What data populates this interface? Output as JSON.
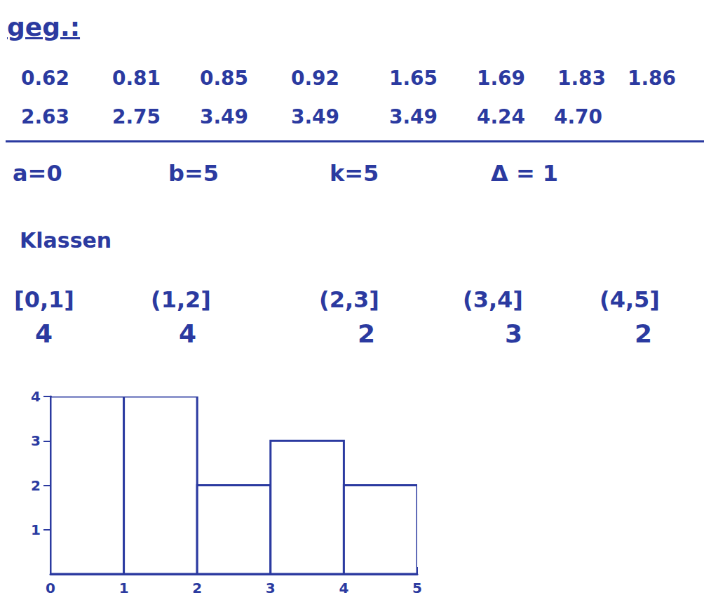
{
  "header": "geg.:",
  "given_values": [
    [
      "0.62",
      "0.81",
      "0.85",
      "0.92",
      "1.65",
      "1.69",
      "1.83",
      "1.86"
    ],
    [
      "2.63",
      "2.75",
      "3.49",
      "3.49",
      "3.49",
      "4.24",
      "4.70"
    ]
  ],
  "parameters": [
    "a=0",
    "b=5",
    "k=5",
    "Δ = 1"
  ],
  "classes_title": "Klassen",
  "classes": [
    {
      "label": "[0,1]",
      "count": 4
    },
    {
      "label": "(1,2]",
      "count": 4
    },
    {
      "label": "(2,3]",
      "count": 2
    },
    {
      "label": "(3,4]",
      "count": 3
    },
    {
      "label": "(4,5]",
      "count": 2
    }
  ],
  "chart_data": {
    "type": "histogram",
    "bins": [
      0,
      1,
      2,
      3,
      4,
      5
    ],
    "values": [
      4,
      4,
      2,
      3,
      2
    ],
    "color": "#2b3aa0",
    "xlim": [
      0,
      5
    ],
    "xticks": [
      0,
      1,
      2,
      3,
      4,
      5
    ],
    "ylim": [
      0,
      4
    ],
    "yticks": [
      1,
      2,
      3,
      4
    ],
    "grid": false
  }
}
